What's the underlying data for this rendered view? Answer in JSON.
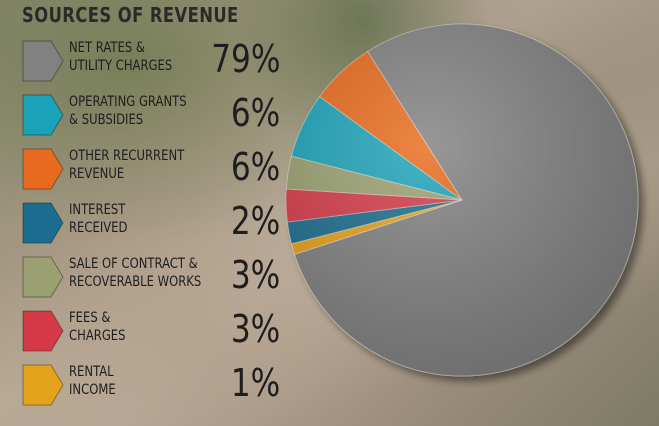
{
  "chart_data": {
    "type": "pie",
    "title": "SOURCES OF REVENUE",
    "slices": [
      {
        "label": "NET RATES & UTILITY CHARGES",
        "line1": "NET RATES &",
        "line2": "UTILITY CHARGES",
        "value": 79,
        "value_label": "79%",
        "color": "#818181"
      },
      {
        "label": "OPERATING GRANTS & SUBSIDIES",
        "line1": "OPERATING GRANTS",
        "line2": "& SUBSIDIES",
        "value": 6,
        "value_label": "6%",
        "color": "#1aa3b8"
      },
      {
        "label": "OTHER RECURRENT REVENUE",
        "line1": "OTHER RECURRENT",
        "line2": "REVENUE",
        "value": 6,
        "value_label": "6%",
        "color": "#e86a1e"
      },
      {
        "label": "INTEREST RECEIVED",
        "line1": "INTEREST",
        "line2": "RECEIVED",
        "value": 2,
        "value_label": "2%",
        "color": "#1b6d8f"
      },
      {
        "label": "SALE OF CONTRACT & RECOVERABLE WORKS",
        "line1": "SALE OF CONTRACT &",
        "line2": "RECOVERABLE WORKS",
        "value": 3,
        "value_label": "3%",
        "color": "#9aa070"
      },
      {
        "label": "FEES & CHARGES",
        "line1": "FEES &",
        "line2": "CHARGES",
        "value": 3,
        "value_label": "3%",
        "color": "#d43a48"
      },
      {
        "label": "RENTAL INCOME",
        "line1": "RENTAL",
        "line2": "INCOME",
        "value": 1,
        "value_label": "1%",
        "color": "#e5a21c"
      }
    ],
    "pie_order": [
      1,
      2,
      0,
      6,
      3,
      5,
      4
    ]
  }
}
